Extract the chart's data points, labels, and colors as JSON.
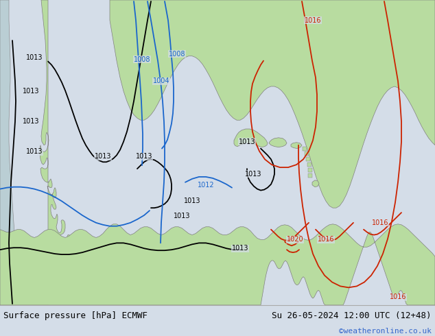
{
  "title_left": "Surface pressure [hPa] ECMWF",
  "title_right": "Su 26-05-2024 12:00 UTC (12+48)",
  "credit": "©weatheronline.co.uk",
  "bg_color": "#d4dde8",
  "land_color": "#b8dca0",
  "border_color": "#808080",
  "bottom_bar_color": "#ffffff",
  "font_size_title": 9,
  "font_size_credit": 8,
  "fig_width": 6.34,
  "fig_height": 4.9
}
